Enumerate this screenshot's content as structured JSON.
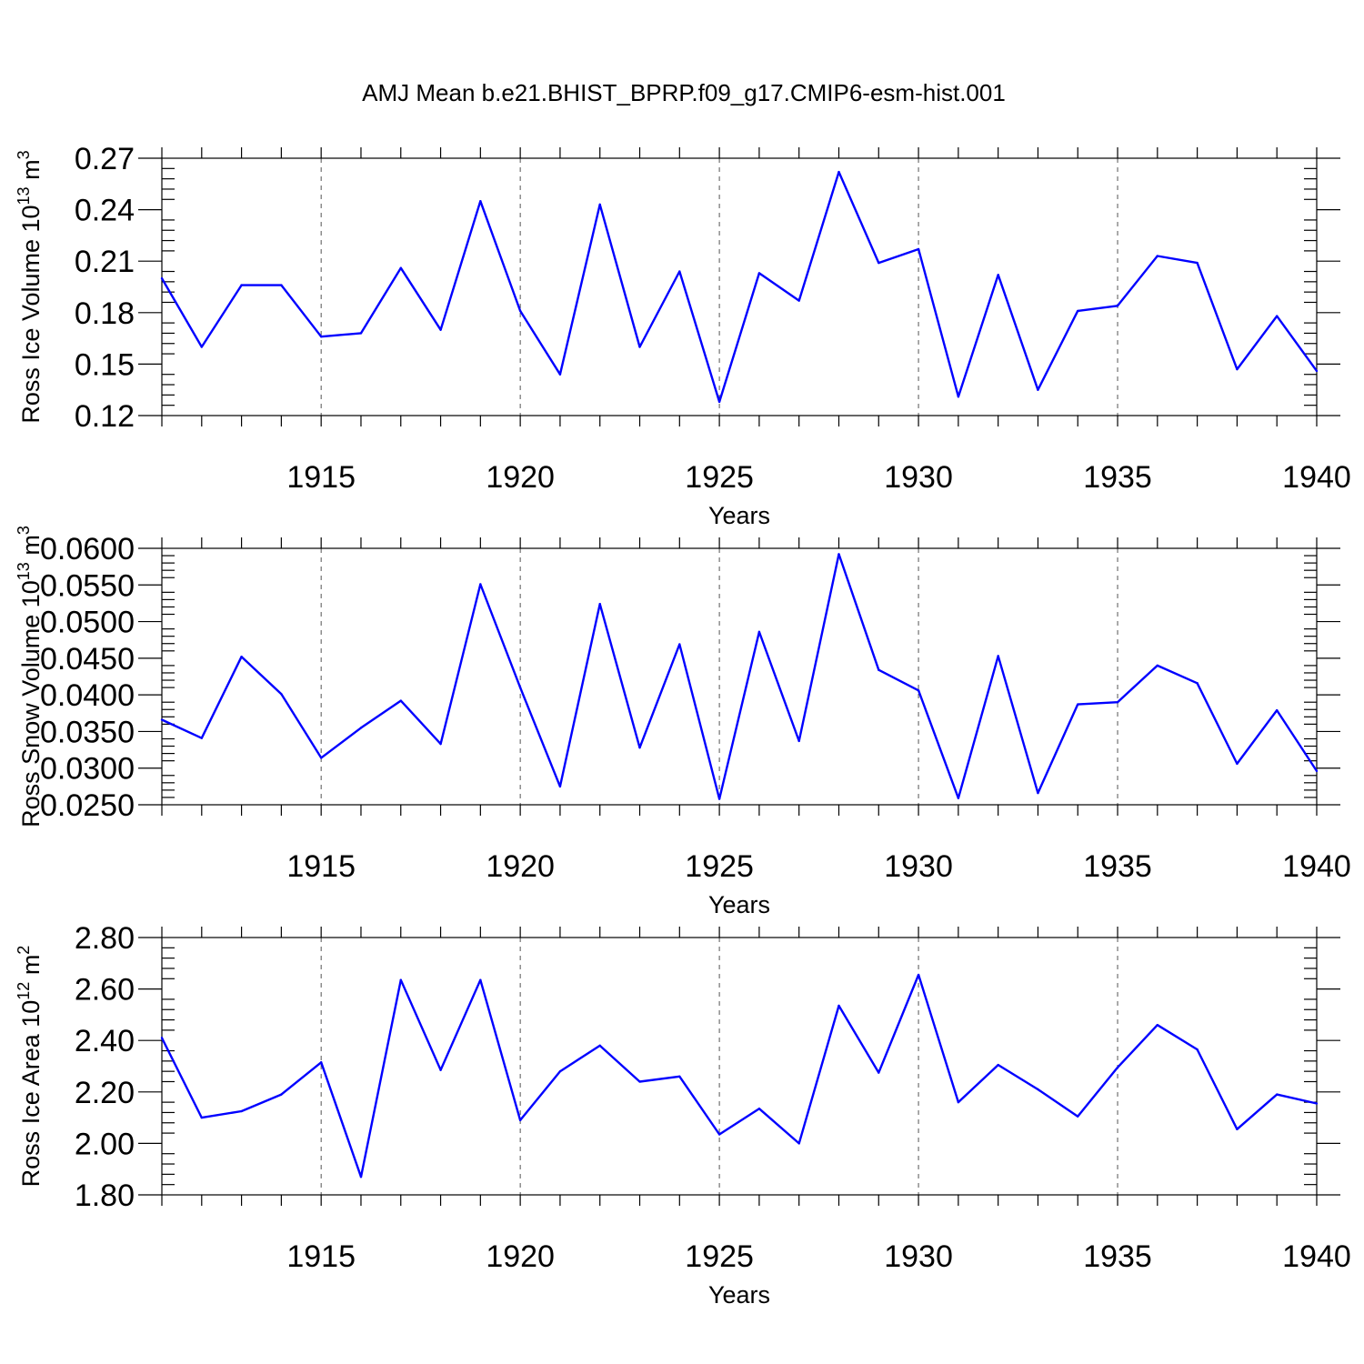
{
  "title": "AMJ Mean b.e21.BHIST_BPRP.f09_g17.CMIP6-esm-hist.001",
  "line_color": "#0000ff",
  "chart_data": [
    {
      "type": "line",
      "id": "ice-volume",
      "title": "AMJ Mean b.e21.BHIST_BPRP.f09_g17.CMIP6-esm-hist.001",
      "ylabel": "Ross Ice Volume 10",
      "ylabel_sup": "13",
      "ylabel_unit": " m",
      "ylabel_unit_sup": "3",
      "xlabel": "Years",
      "xlim": [
        1911,
        1940
      ],
      "ylim": [
        0.12,
        0.27
      ],
      "yticks": [
        0.12,
        0.15,
        0.18,
        0.21,
        0.24,
        0.27
      ],
      "ytick_labels": [
        "0.12",
        "0.15",
        "0.18",
        "0.21",
        "0.24",
        "0.27"
      ],
      "xticks": [
        1915,
        1920,
        1925,
        1930,
        1935,
        1940
      ],
      "xtick_labels": [
        "1915",
        "1920",
        "1925",
        "1930",
        "1935",
        "1940"
      ],
      "x": [
        1911,
        1912,
        1913,
        1914,
        1915,
        1916,
        1917,
        1918,
        1919,
        1920,
        1921,
        1922,
        1923,
        1924,
        1925,
        1926,
        1927,
        1928,
        1929,
        1930,
        1931,
        1932,
        1933,
        1934,
        1935,
        1936,
        1937,
        1938,
        1939,
        1940
      ],
      "values": [
        0.2,
        0.16,
        0.196,
        0.196,
        0.166,
        0.168,
        0.206,
        0.17,
        0.245,
        0.181,
        0.144,
        0.243,
        0.16,
        0.204,
        0.128,
        0.203,
        0.187,
        0.262,
        0.209,
        0.217,
        0.131,
        0.202,
        0.135,
        0.181,
        0.184,
        0.213,
        0.209,
        0.147,
        0.178,
        0.146
      ]
    },
    {
      "type": "line",
      "id": "snow-volume",
      "ylabel": "Ross Snow Volume 10",
      "ylabel_sup": "13",
      "ylabel_unit": " m",
      "ylabel_unit_sup": "3",
      "xlabel": "Years",
      "xlim": [
        1911,
        1940
      ],
      "ylim": [
        0.025,
        0.06
      ],
      "yticks": [
        0.025,
        0.03,
        0.035,
        0.04,
        0.045,
        0.05,
        0.055,
        0.06
      ],
      "ytick_labels": [
        "0.0250",
        "0.0300",
        "0.0350",
        "0.0400",
        "0.0450",
        "0.0500",
        "0.0550",
        "0.0600"
      ],
      "xticks": [
        1915,
        1920,
        1925,
        1930,
        1935,
        1940
      ],
      "xtick_labels": [
        "1915",
        "1920",
        "1925",
        "1930",
        "1935",
        "1940"
      ],
      "x": [
        1911,
        1912,
        1913,
        1914,
        1915,
        1916,
        1917,
        1918,
        1919,
        1920,
        1921,
        1922,
        1923,
        1924,
        1925,
        1926,
        1927,
        1928,
        1929,
        1930,
        1931,
        1932,
        1933,
        1934,
        1935,
        1936,
        1937,
        1938,
        1939,
        1940
      ],
      "values": [
        0.0366,
        0.0341,
        0.0452,
        0.0401,
        0.0314,
        0.0355,
        0.0392,
        0.0333,
        0.0551,
        0.041,
        0.0275,
        0.0524,
        0.0328,
        0.0469,
        0.0258,
        0.0486,
        0.0337,
        0.0592,
        0.0434,
        0.0406,
        0.0259,
        0.0453,
        0.0266,
        0.0387,
        0.039,
        0.044,
        0.0416,
        0.0306,
        0.0379,
        0.0296
      ]
    },
    {
      "type": "line",
      "id": "ice-area",
      "ylabel": "Ross Ice Area 10",
      "ylabel_sup": "12",
      "ylabel_unit": " m",
      "ylabel_unit_sup": "2",
      "xlabel": "Years",
      "xlim": [
        1911,
        1940
      ],
      "ylim": [
        1.8,
        2.8
      ],
      "yticks": [
        1.8,
        2.0,
        2.2,
        2.4,
        2.6,
        2.8
      ],
      "ytick_labels": [
        "1.80",
        "2.00",
        "2.20",
        "2.40",
        "2.60",
        "2.80"
      ],
      "xticks": [
        1915,
        1920,
        1925,
        1930,
        1935,
        1940
      ],
      "xtick_labels": [
        "1915",
        "1920",
        "1925",
        "1930",
        "1935",
        "1940"
      ],
      "x": [
        1911,
        1912,
        1913,
        1914,
        1915,
        1916,
        1917,
        1918,
        1919,
        1920,
        1921,
        1922,
        1923,
        1924,
        1925,
        1926,
        1927,
        1928,
        1929,
        1930,
        1931,
        1932,
        1933,
        1934,
        1935,
        1936,
        1937,
        1938,
        1939,
        1940
      ],
      "values": [
        2.41,
        2.1,
        2.125,
        2.19,
        2.315,
        1.87,
        2.635,
        2.285,
        2.635,
        2.09,
        2.28,
        2.38,
        2.24,
        2.26,
        2.035,
        2.135,
        2.0,
        2.535,
        2.275,
        2.655,
        2.16,
        2.305,
        2.21,
        2.105,
        2.295,
        2.46,
        2.365,
        2.055,
        2.19,
        2.155
      ]
    }
  ]
}
